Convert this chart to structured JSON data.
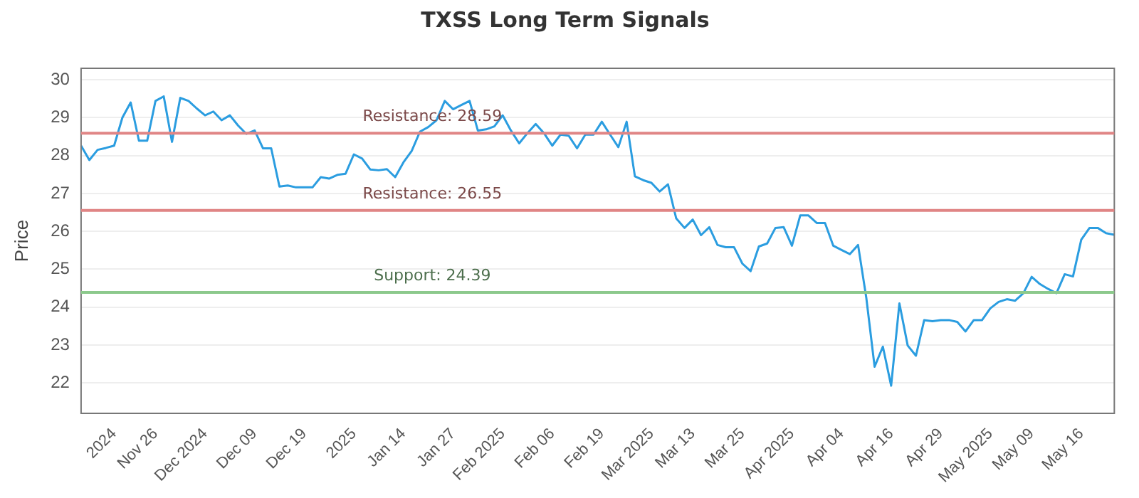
{
  "chart_data": {
    "type": "line",
    "title": "TXSS Long Term Signals",
    "ylabel": "Price",
    "categories": [
      null,
      null,
      null,
      null,
      "2024",
      null,
      null,
      null,
      null,
      "Nov 26",
      null,
      null,
      null,
      null,
      null,
      "Dec 2024",
      null,
      null,
      null,
      null,
      null,
      "Dec 09",
      null,
      null,
      null,
      null,
      null,
      "Dec 19",
      null,
      null,
      null,
      null,
      null,
      "2025",
      null,
      null,
      null,
      null,
      null,
      "Jan 14",
      null,
      null,
      null,
      null,
      null,
      "Jan 27",
      null,
      null,
      null,
      null,
      null,
      "Feb 2025",
      null,
      null,
      null,
      null,
      null,
      "Feb 06",
      null,
      null,
      null,
      null,
      null,
      "Feb 19",
      null,
      null,
      null,
      null,
      null,
      "Mar 2025",
      null,
      null,
      null,
      null,
      "Mar 13",
      null,
      null,
      null,
      null,
      null,
      "Mar 25",
      null,
      null,
      null,
      null,
      null,
      "Apr 2025",
      null,
      null,
      null,
      null,
      null,
      "Apr 04",
      null,
      null,
      null,
      null,
      null,
      "Apr 16",
      null,
      null,
      null,
      null,
      null,
      "Apr 29",
      null,
      null,
      null,
      null,
      null,
      "May 2025",
      null,
      null,
      null,
      null,
      "May 09",
      null,
      null,
      null,
      null,
      null,
      "May 16",
      null,
      null,
      null,
      null
    ],
    "series": [
      {
        "color": "#2b9de0",
        "values": [
          28.26,
          27.88,
          28.15,
          28.2,
          28.26,
          29.0,
          29.4,
          28.39,
          28.39,
          29.44,
          29.56,
          28.36,
          29.52,
          29.44,
          29.24,
          29.06,
          29.16,
          28.93,
          29.06,
          28.79,
          28.57,
          28.66,
          28.19,
          28.19,
          27.18,
          27.21,
          27.16,
          27.16,
          27.16,
          27.43,
          27.39,
          27.49,
          27.52,
          28.03,
          27.92,
          27.63,
          27.61,
          27.64,
          27.43,
          27.82,
          28.12,
          28.63,
          28.75,
          28.93,
          29.44,
          29.22,
          29.33,
          29.44,
          28.66,
          28.69,
          28.77,
          29.06,
          28.66,
          28.32,
          28.59,
          28.83,
          28.59,
          28.26,
          28.55,
          28.52,
          28.19,
          28.55,
          28.55,
          28.89,
          28.55,
          28.22,
          28.89,
          27.45,
          27.35,
          27.28,
          27.05,
          27.24,
          26.34,
          26.09,
          26.31,
          25.9,
          26.11,
          25.64,
          25.58,
          25.58,
          25.15,
          24.95,
          25.6,
          25.68,
          26.09,
          26.11,
          25.62,
          26.42,
          26.42,
          26.22,
          26.22,
          25.62,
          25.51,
          25.4,
          25.64,
          24.24,
          22.43,
          22.96,
          21.93,
          24.1,
          22.99,
          22.72,
          23.66,
          23.63,
          23.66,
          23.66,
          23.61,
          23.36,
          23.66,
          23.66,
          23.97,
          24.14,
          24.21,
          24.17,
          24.37,
          24.8,
          24.61,
          24.48,
          24.37,
          24.87,
          24.81,
          25.78,
          26.09,
          26.09,
          25.95,
          25.91
        ]
      }
    ],
    "ylim": [
      21.2,
      30.3
    ],
    "yticks": [
      22,
      23,
      24,
      25,
      26,
      27,
      28,
      29,
      30
    ],
    "grid": "y",
    "legend": false,
    "marker": "none",
    "line_style": "solid",
    "ref_lines": [
      {
        "axis": "y",
        "value": 28.59,
        "label": "Resistance: 28.59",
        "color": "#e08585"
      },
      {
        "axis": "y",
        "value": 26.55,
        "label": "Resistance: 26.55",
        "color": "#e08585"
      },
      {
        "axis": "y",
        "value": 24.39,
        "label": "Support: 24.39",
        "color": "#8cc98c"
      }
    ]
  }
}
